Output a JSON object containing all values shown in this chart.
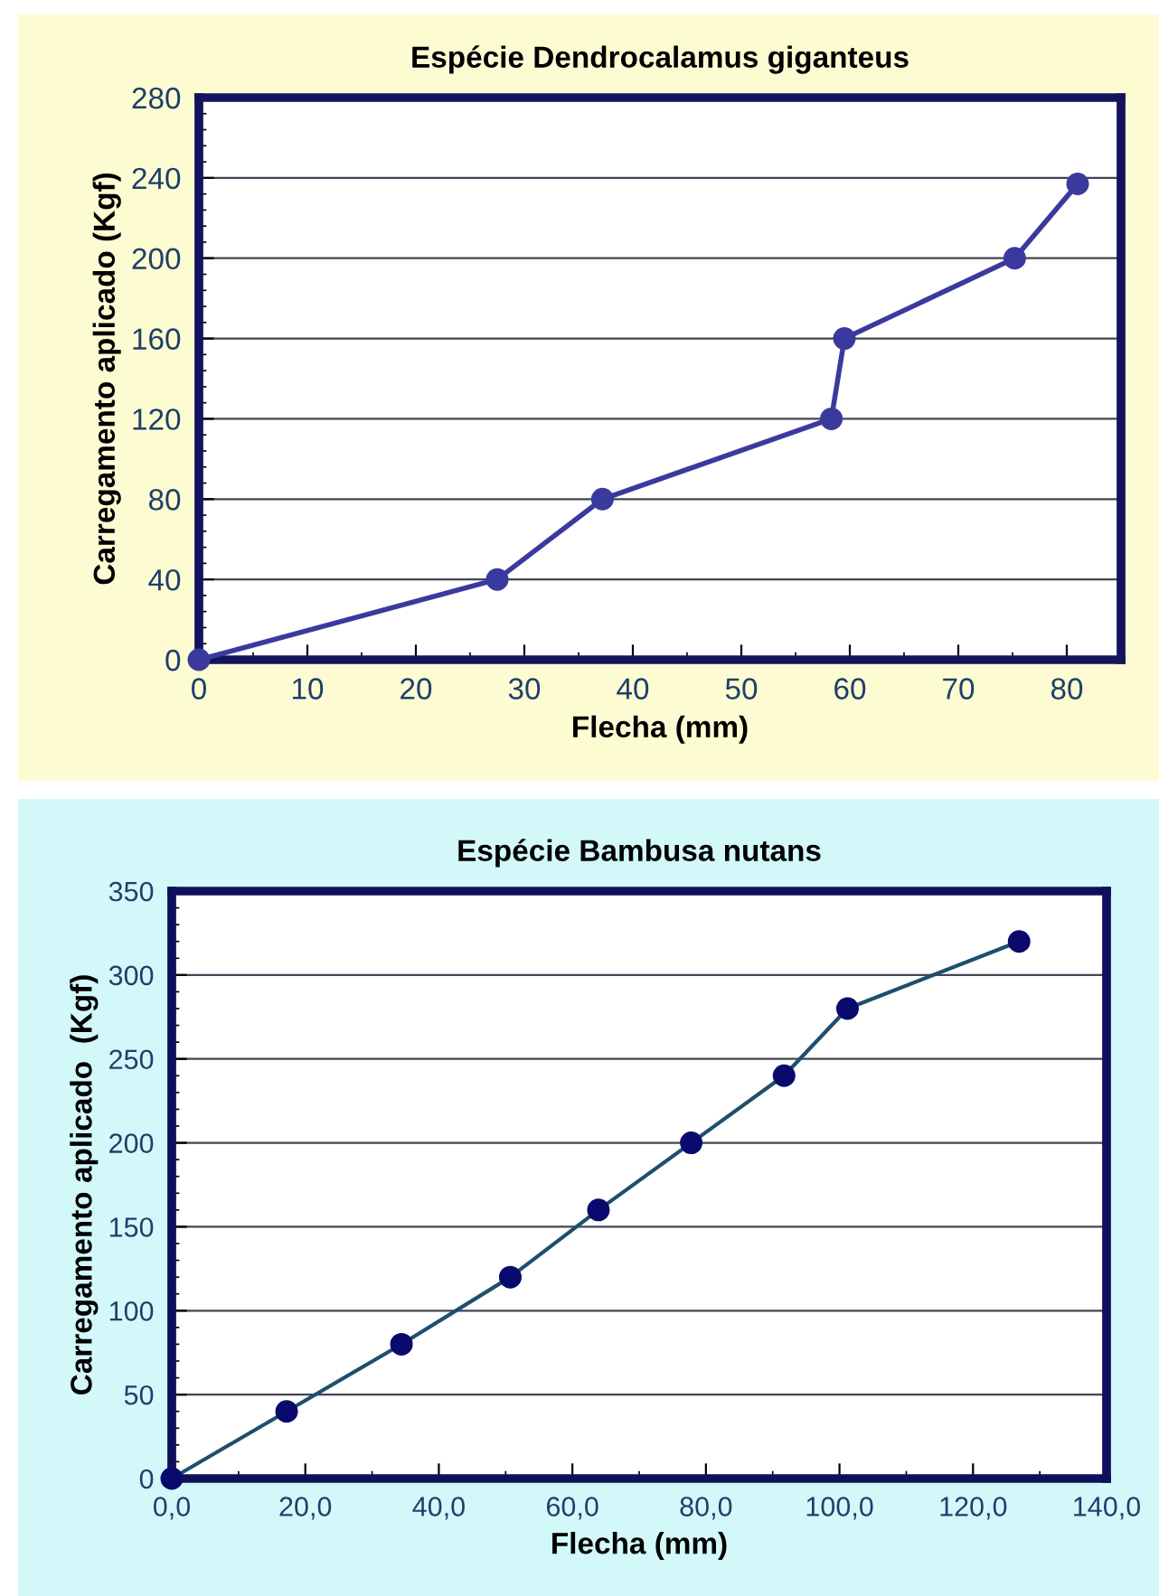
{
  "chart_data": [
    {
      "type": "line",
      "title": "Espécie Dendrocalamus giganteus",
      "xlabel": "Flecha (mm)",
      "ylabel": "Carregamento aplicado (Kgf)",
      "x": [
        0,
        27.5,
        37.2,
        58.3,
        59.5,
        75.2,
        81.0
      ],
      "series": [
        {
          "color": "#3a3a9e",
          "values": [
            0,
            40,
            80,
            120,
            160,
            200,
            237
          ]
        }
      ],
      "xlim": [
        0,
        85
      ],
      "xticks": [
        0,
        10,
        20,
        30,
        40,
        50,
        60,
        70,
        80
      ],
      "ylim": [
        0,
        280
      ],
      "yticks": [
        0,
        40,
        80,
        120,
        160,
        200,
        240,
        280
      ],
      "grid": "y",
      "marker": "circle",
      "line_style": "solid"
    },
    {
      "type": "line",
      "title": "Espécie Bambusa nutans",
      "xlabel": "Flecha (mm)",
      "ylabel": "Carregamento aplicado  (Kgf)",
      "x": [
        0,
        17.2,
        34.4,
        50.7,
        63.9,
        77.8,
        91.7,
        101.2,
        126.9
      ],
      "series": [
        {
          "color": "#1f4e6e",
          "values": [
            0,
            40,
            80,
            120,
            160,
            200,
            240,
            280,
            320
          ]
        }
      ],
      "xlim": [
        0,
        140
      ],
      "xticks": [
        {
          "value": 0,
          "label": "0,0"
        },
        {
          "value": 20,
          "label": "20,0"
        },
        {
          "value": 40,
          "label": "40,0"
        },
        {
          "value": 60,
          "label": "60,0"
        },
        {
          "value": 80,
          "label": "80,0"
        },
        {
          "value": 100,
          "label": "100,0"
        },
        {
          "value": 120,
          "label": "120,0"
        },
        {
          "value": 140,
          "label": "140,0"
        }
      ],
      "ylim": [
        0,
        350
      ],
      "yticks": [
        0,
        50,
        100,
        150,
        200,
        250,
        300,
        350
      ],
      "grid": "y",
      "marker": "circle",
      "line_style": "solid"
    }
  ]
}
